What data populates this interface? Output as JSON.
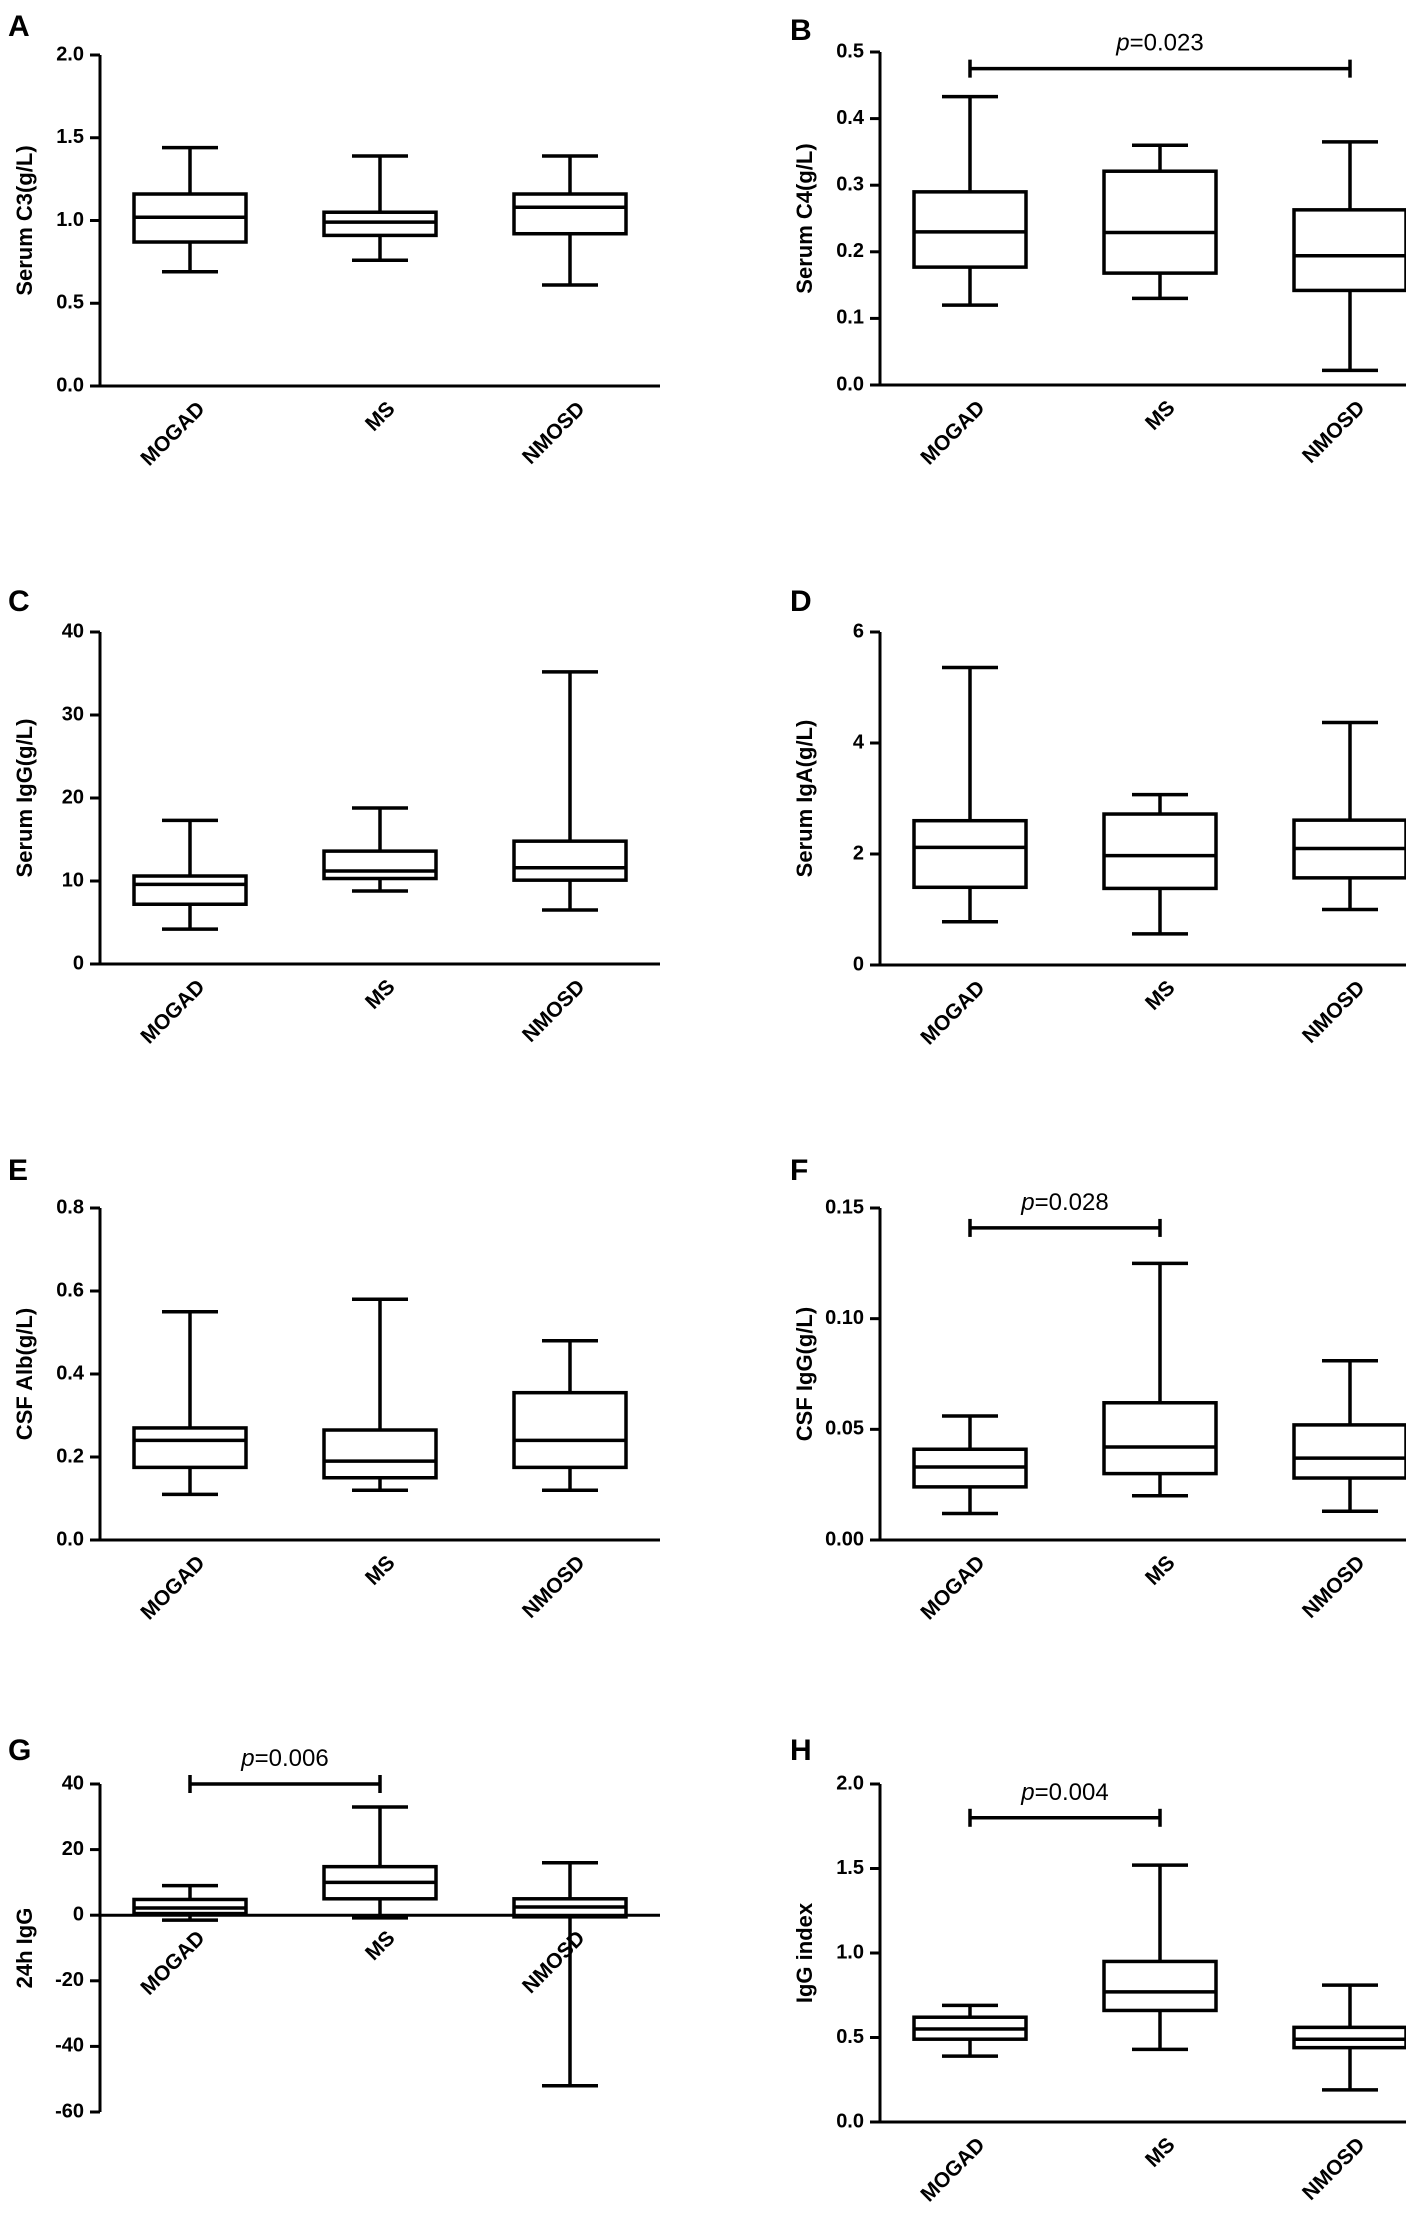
{
  "figure_title": "",
  "chart_data": [
    {
      "panel": "A",
      "type": "boxplot",
      "ylabel": "Serum C3(g/L)",
      "ylim": [
        0,
        2
      ],
      "yticks": [
        0.0,
        0.5,
        1.0,
        1.5,
        2.0
      ],
      "ytick_labels": [
        "0.0",
        "0.5",
        "1.0",
        "1.5",
        "2.0"
      ],
      "zero_baseline": false,
      "categories": [
        "MOGAD",
        "MS",
        "NMOSD"
      ],
      "boxes": [
        {
          "min": 0.69,
          "q1": 0.87,
          "median": 1.02,
          "q3": 1.16,
          "max": 1.44
        },
        {
          "min": 0.76,
          "q1": 0.91,
          "median": 0.99,
          "q3": 1.05,
          "max": 1.39
        },
        {
          "min": 0.61,
          "q1": 0.92,
          "median": 1.08,
          "q3": 1.16,
          "max": 1.39
        }
      ],
      "comparison": null
    },
    {
      "panel": "B",
      "type": "boxplot",
      "ylabel": "Serum C4(g/L)",
      "ylim": [
        0,
        0.5
      ],
      "yticks": [
        0.0,
        0.1,
        0.2,
        0.3,
        0.4,
        0.5
      ],
      "ytick_labels": [
        "0.0",
        "0.1",
        "0.2",
        "0.3",
        "0.4",
        "0.5"
      ],
      "zero_baseline": false,
      "categories": [
        "MOGAD",
        "MS",
        "NMOSD"
      ],
      "boxes": [
        {
          "min": 0.12,
          "q1": 0.177,
          "median": 0.23,
          "q3": 0.29,
          "max": 0.433
        },
        {
          "min": 0.13,
          "q1": 0.168,
          "median": 0.229,
          "q3": 0.321,
          "max": 0.36
        },
        {
          "min": 0.022,
          "q1": 0.142,
          "median": 0.194,
          "q3": 0.263,
          "max": 0.365
        }
      ],
      "comparison": {
        "from": 0,
        "to": 2,
        "y": 0.475,
        "p_prefix": "p",
        "p_value": "=0.023"
      }
    },
    {
      "panel": "C",
      "type": "boxplot",
      "ylabel": "Serum IgG(g/L)",
      "ylim": [
        0,
        40
      ],
      "yticks": [
        0,
        10,
        20,
        30,
        40
      ],
      "ytick_labels": [
        "0",
        "10",
        "20",
        "30",
        "40"
      ],
      "zero_baseline": false,
      "categories": [
        "MOGAD",
        "MS",
        "NMOSD"
      ],
      "boxes": [
        {
          "min": 4.2,
          "q1": 7.2,
          "median": 9.6,
          "q3": 10.6,
          "max": 17.3
        },
        {
          "min": 8.8,
          "q1": 10.3,
          "median": 11.2,
          "q3": 13.6,
          "max": 18.8
        },
        {
          "min": 6.5,
          "q1": 10.1,
          "median": 11.6,
          "q3": 14.8,
          "max": 35.2
        }
      ],
      "comparison": null
    },
    {
      "panel": "D",
      "type": "boxplot",
      "ylabel": "Serum IgA(g/L)",
      "ylim": [
        0,
        6
      ],
      "yticks": [
        0,
        2,
        4,
        6
      ],
      "ytick_labels": [
        "0",
        "2",
        "4",
        "6"
      ],
      "zero_baseline": false,
      "categories": [
        "MOGAD",
        "MS",
        "NMOSD"
      ],
      "boxes": [
        {
          "min": 0.78,
          "q1": 1.4,
          "median": 2.12,
          "q3": 2.6,
          "max": 5.36
        },
        {
          "min": 0.56,
          "q1": 1.38,
          "median": 1.97,
          "q3": 2.72,
          "max": 3.07
        },
        {
          "min": 1.0,
          "q1": 1.57,
          "median": 2.1,
          "q3": 2.61,
          "max": 4.37
        }
      ],
      "comparison": null
    },
    {
      "panel": "E",
      "type": "boxplot",
      "ylabel": "CSF Alb(g/L)",
      "ylim": [
        0,
        0.8
      ],
      "yticks": [
        0.0,
        0.2,
        0.4,
        0.6,
        0.8
      ],
      "ytick_labels": [
        "0.0",
        "0.2",
        "0.4",
        "0.6",
        "0.8"
      ],
      "zero_baseline": false,
      "categories": [
        "MOGAD",
        "MS",
        "NMOSD"
      ],
      "boxes": [
        {
          "min": 0.11,
          "q1": 0.175,
          "median": 0.24,
          "q3": 0.27,
          "max": 0.55
        },
        {
          "min": 0.12,
          "q1": 0.15,
          "median": 0.19,
          "q3": 0.265,
          "max": 0.58
        },
        {
          "min": 0.12,
          "q1": 0.175,
          "median": 0.24,
          "q3": 0.355,
          "max": 0.48
        }
      ],
      "comparison": null
    },
    {
      "panel": "F",
      "type": "boxplot",
      "ylabel": "CSF IgG(g/L)",
      "ylim": [
        0,
        0.15
      ],
      "yticks": [
        0.0,
        0.05,
        0.1,
        0.15
      ],
      "ytick_labels": [
        "0.00",
        "0.05",
        "0.10",
        "0.15"
      ],
      "zero_baseline": false,
      "categories": [
        "MOGAD",
        "MS",
        "NMOSD"
      ],
      "boxes": [
        {
          "min": 0.012,
          "q1": 0.024,
          "median": 0.033,
          "q3": 0.041,
          "max": 0.056
        },
        {
          "min": 0.02,
          "q1": 0.03,
          "median": 0.042,
          "q3": 0.062,
          "max": 0.125
        },
        {
          "min": 0.013,
          "q1": 0.028,
          "median": 0.037,
          "q3": 0.052,
          "max": 0.081
        }
      ],
      "comparison": {
        "from": 0,
        "to": 1,
        "y": 0.141,
        "p_prefix": "p",
        "p_value": "=0.028"
      }
    },
    {
      "panel": "G",
      "type": "boxplot",
      "ylabel": "24h IgG",
      "ylim": [
        -60,
        40
      ],
      "yticks": [
        -60,
        -40,
        -20,
        0,
        20,
        40
      ],
      "ytick_labels": [
        "-60",
        "-40",
        "-20",
        "0",
        "20",
        "40"
      ],
      "zero_baseline": true,
      "categories": [
        "MOGAD",
        "MS",
        "NMOSD"
      ],
      "boxes": [
        {
          "min": -1.5,
          "q1": 0.5,
          "median": 2.2,
          "q3": 4.8,
          "max": 9
        },
        {
          "min": -0.8,
          "q1": 5,
          "median": 10,
          "q3": 14.8,
          "max": 33
        },
        {
          "min": -52,
          "q1": -0.5,
          "median": 2.5,
          "q3": 5,
          "max": 16
        }
      ],
      "comparison": {
        "from": 0,
        "to": 1,
        "y": 40,
        "p_prefix": "p",
        "p_value": "=0.006"
      }
    },
    {
      "panel": "H",
      "type": "boxplot",
      "ylabel": "IgG index",
      "ylim": [
        0,
        2
      ],
      "yticks": [
        0.0,
        0.5,
        1.0,
        1.5,
        2.0
      ],
      "ytick_labels": [
        "0.0",
        "0.5",
        "1.0",
        "1.5",
        "2.0"
      ],
      "zero_baseline": false,
      "categories": [
        "MOGAD",
        "MS",
        "NMOSD"
      ],
      "boxes": [
        {
          "min": 0.39,
          "q1": 0.49,
          "median": 0.55,
          "q3": 0.62,
          "max": 0.69
        },
        {
          "min": 0.43,
          "q1": 0.66,
          "median": 0.77,
          "q3": 0.95,
          "max": 1.52
        },
        {
          "min": 0.19,
          "q1": 0.44,
          "median": 0.49,
          "q3": 0.56,
          "max": 0.81
        }
      ],
      "comparison": {
        "from": 0,
        "to": 1,
        "y": 1.8,
        "p_prefix": "p",
        "p_value": "=0.004"
      }
    }
  ]
}
